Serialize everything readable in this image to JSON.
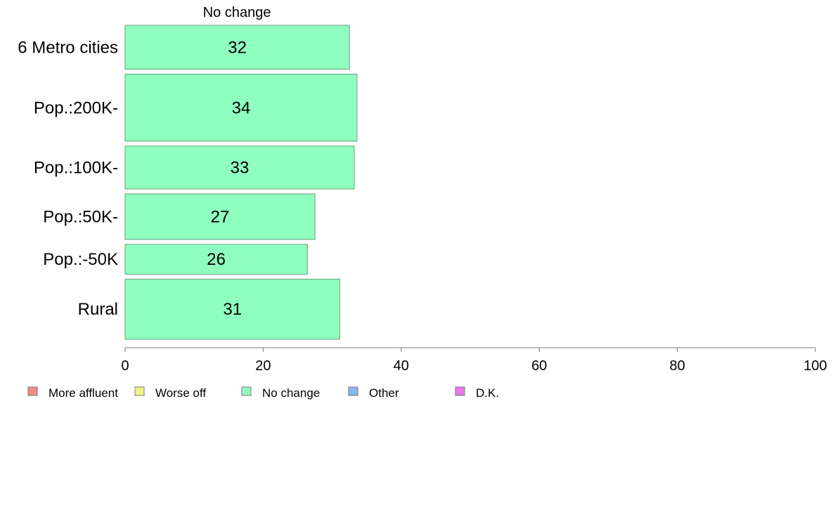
{
  "chart_data": {
    "type": "bar",
    "orientation": "horizontal",
    "title": "",
    "series_title": "No change",
    "categories": [
      "6 Metro cities",
      "Pop.:200K-",
      "Pop.:100K-",
      "Pop.:50K-",
      "Pop.:-50K",
      "Rural"
    ],
    "series": [
      {
        "name": "No change",
        "values": [
          32.5,
          33.6,
          33.2,
          27.5,
          26.4,
          31.1
        ],
        "labels": [
          "32",
          "34",
          "33",
          "27",
          "26",
          "31"
        ]
      }
    ],
    "category_weights": [
      0.84,
      1.28,
      0.82,
      0.87,
      0.57,
      1.15
    ],
    "xlim": [
      0,
      100
    ],
    "xticks": [
      0,
      20,
      40,
      60,
      80,
      100
    ],
    "xlabel": "",
    "ylabel": "",
    "grid": false,
    "legend_position": "bottom-left",
    "legend": [
      {
        "label": "More affluent",
        "color": "#f28c8c"
      },
      {
        "label": "Worse off",
        "color": "#eef58a"
      },
      {
        "label": "No change",
        "color": "#8effbf"
      },
      {
        "label": "Other",
        "color": "#86b6f2"
      },
      {
        "label": "D.K.",
        "color": "#ea78ef"
      }
    ],
    "bar_color": "#8effbf",
    "bar_stroke": "#6a9c80",
    "axis_color": "#777777"
  }
}
